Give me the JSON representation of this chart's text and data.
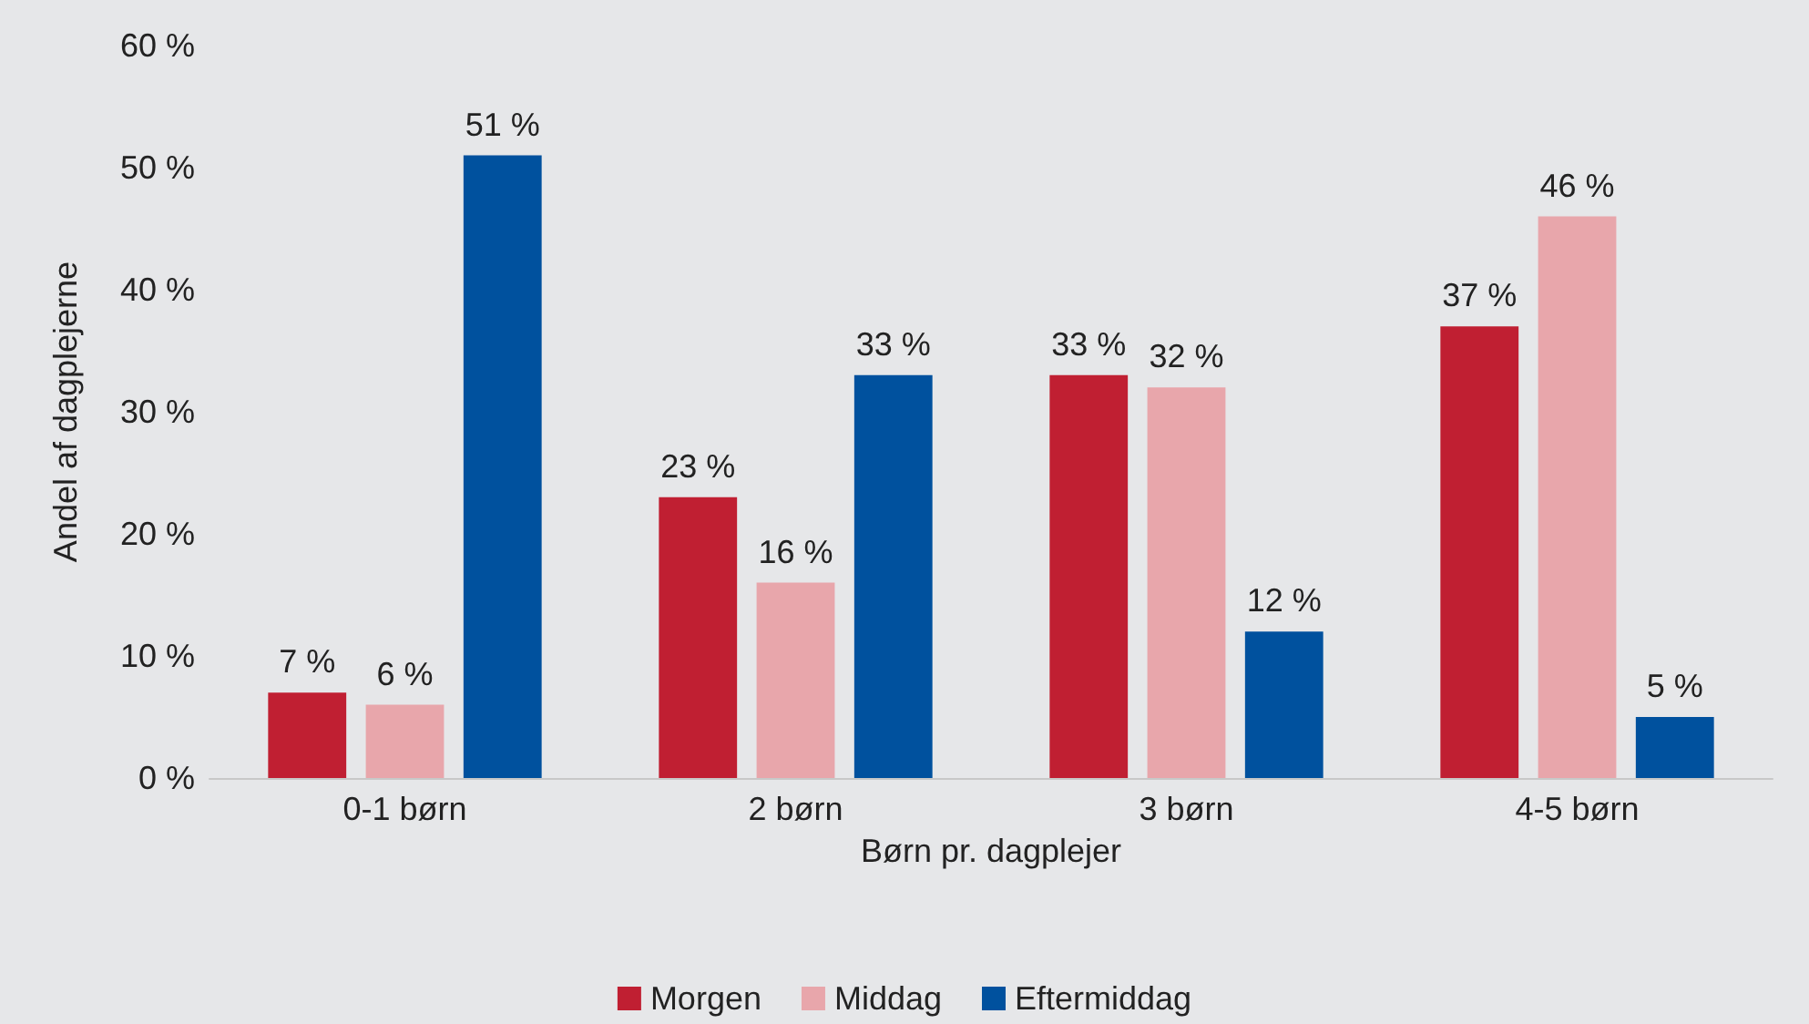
{
  "chart_data": {
    "type": "bar",
    "xlabel": "Børn pr. dagplejer",
    "ylabel": "Andel af dagplejerne",
    "categories": [
      "0-1 børn",
      "2 børn",
      "3 børn",
      "4-5 børn"
    ],
    "series": [
      {
        "name": "Morgen",
        "color": "#c01f32",
        "values": [
          7,
          23,
          33,
          37
        ],
        "value_labels": [
          "7 %",
          "23 %",
          "33 %",
          "37 %"
        ]
      },
      {
        "name": "Middag",
        "color": "#e8a6ab",
        "values": [
          6,
          16,
          32,
          46
        ],
        "value_labels": [
          "6 %",
          "16 %",
          "32 %",
          "46 %"
        ]
      },
      {
        "name": "Eftermiddag",
        "color": "#00519e",
        "values": [
          51,
          33,
          12,
          5
        ],
        "value_labels": [
          "51 %",
          "33 %",
          "12 %",
          "5 %"
        ]
      }
    ],
    "ylim": [
      0,
      60
    ],
    "yticks": [
      {
        "value": 0,
        "label": "0 %"
      },
      {
        "value": 10,
        "label": "10 %"
      },
      {
        "value": 20,
        "label": "20 %"
      },
      {
        "value": 30,
        "label": "30 %"
      },
      {
        "value": 40,
        "label": "40 %"
      },
      {
        "value": 50,
        "label": "50 %"
      },
      {
        "value": 60,
        "label": "60 %"
      }
    ],
    "grid": false,
    "legend": "bottom"
  }
}
